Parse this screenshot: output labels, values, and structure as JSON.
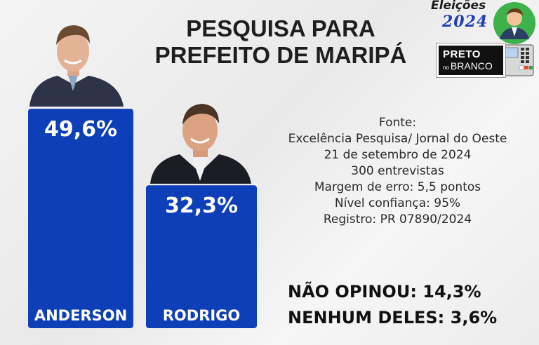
{
  "header": {
    "title_line1": "PESQUISA PARA",
    "title_line2": "PREFEITO DE MARIPÁ"
  },
  "logo": {
    "title": "Eleições",
    "year": "2024",
    "badge_line1": "PRETO",
    "badge_small": "no",
    "badge_line2": "BRANCO",
    "icons": [
      "candidate-avatar-icon",
      "ballot-box-icon"
    ]
  },
  "chart_data": {
    "type": "bar",
    "categories": [
      "ANDERSON",
      "RODRIGO"
    ],
    "values": [
      49.6,
      32.3
    ],
    "value_labels": [
      "49,6%",
      "32,3%"
    ],
    "title": "PESQUISA PARA PREFEITO DE MARIPÁ",
    "xlabel": "",
    "ylabel": "",
    "ylim": [
      0,
      55
    ],
    "grid": false,
    "bar_color": "#0d3fb8",
    "candidate_photos": [
      "candidate-photo-anderson",
      "candidate-photo-rodrigo"
    ]
  },
  "source": {
    "heading": "Fonte:",
    "lines": [
      "Excelência Pesquisa/ Jornal do Oeste",
      "21 de setembro de 2024",
      "300 entrevistas",
      "Margem de erro: 5,5 pontos",
      "Nível confiança: 95%",
      "Registro: PR 07890/2024"
    ]
  },
  "others": [
    "NÃO OPINOU: 14,3%",
    "NENHUM DELES: 3,6%"
  ],
  "colors": {
    "bar": "#0d3fb8",
    "text": "#1e1e1e",
    "year_blue": "#1e3fb0"
  }
}
